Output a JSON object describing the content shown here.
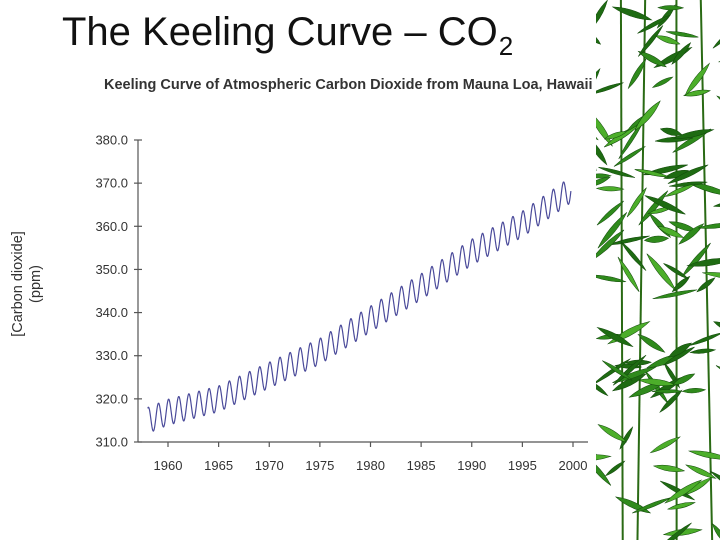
{
  "slide": {
    "title": "The Keeling Curve – CO",
    "title_subscript": "2"
  },
  "colors": {
    "series": "#4a4a9a",
    "axis": "#555555",
    "leaf_dark": "#1e6b12",
    "leaf_mid": "#2f8a1c",
    "leaf_light": "#4cae2a"
  },
  "decoration": {
    "right_border": "bamboo-leaves"
  },
  "chart_data": {
    "type": "line",
    "title": "Keeling Curve of Atmospheric Carbon Dioxide from Mauna Loa, Hawaii",
    "ylabel_line1": "[Carbon dioxide]",
    "ylabel_line2": "(ppm)",
    "xlabel": "",
    "xlim": [
      1955,
      2001
    ],
    "ylim": [
      310,
      380
    ],
    "grid": false,
    "x_ticks": [
      1960,
      1965,
      1970,
      1975,
      1980,
      1985,
      1990,
      1995,
      2000
    ],
    "x_tick_labels": [
      "1960",
      "1965",
      "1970",
      "1975",
      "1980",
      "1985",
      "1990",
      "1995",
      "2000"
    ],
    "y_ticks": [
      310,
      320,
      330,
      340,
      350,
      360,
      370,
      380
    ],
    "y_tick_labels": [
      "310.0",
      "320.0",
      "330.0",
      "340.0",
      "350.0",
      "360.0",
      "370.0",
      "380.0"
    ],
    "series": [
      {
        "trend_years": [
          1958,
          1960,
          1965,
          1970,
          1975,
          1980,
          1985,
          1990,
          1995,
          1999.5
        ],
        "trend_ppm": [
          315.0,
          316.9,
          320.0,
          325.5,
          331.0,
          338.5,
          346.0,
          354.0,
          360.5,
          368.0
        ],
        "seasonal_amplitude_ppm": 3.0,
        "cycles_per_year": 1,
        "points_per_year": 24,
        "start_year": 1958,
        "end_year": 1999.8
      }
    ]
  }
}
